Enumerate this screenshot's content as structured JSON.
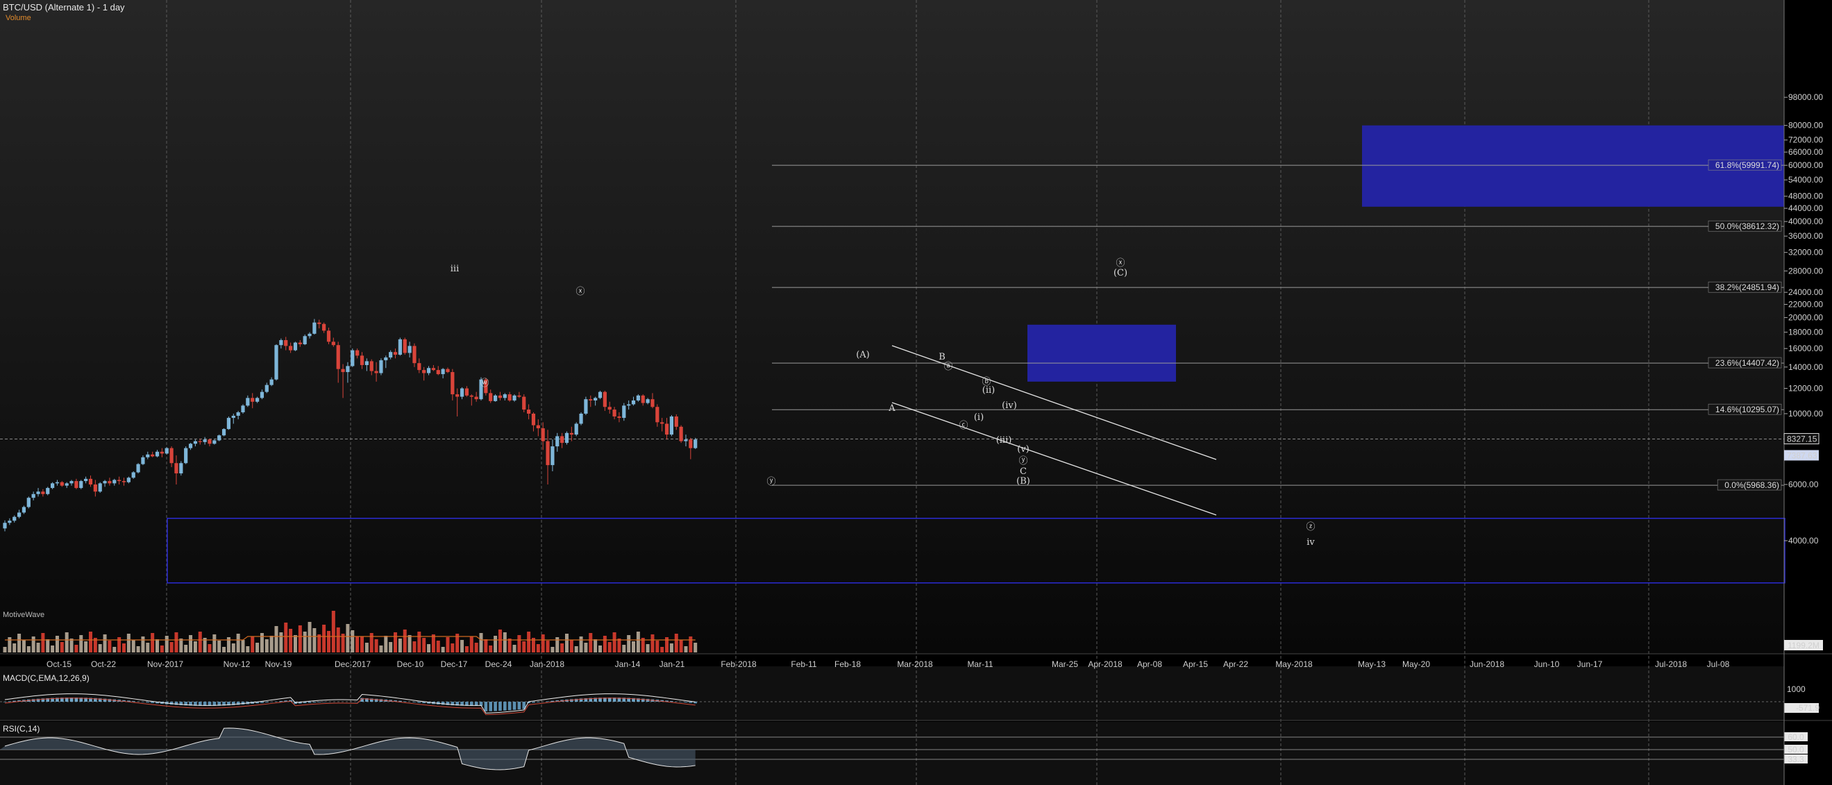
{
  "title": "BTC/USD (Alternate 1) - 1 day",
  "subtitle": "Volume",
  "macd_label": "MACD(C,EMA,12,26,9)",
  "rsi_label": "RSI(C,14)",
  "vol_label": "MotiveWave",
  "colors": {
    "up": "#7eb6d9",
    "down": "#d9443a",
    "box": "#2323a0",
    "boxline": "#2b2bd4",
    "grid": "#6e6e6e"
  },
  "chart_data": {
    "type": "candlestick",
    "y_scale": "log",
    "ylim": [
      2800,
      100000
    ],
    "y_ticks": [
      "98000.00",
      "80000.00",
      "72000.00",
      "66000.00",
      "60000.00",
      "54000.00",
      "48000.00",
      "44000.00",
      "40000.00",
      "36000.00",
      "32000.00",
      "28000.00",
      "24000.00",
      "22000.00",
      "20000.00",
      "18000.00",
      "16000.00",
      "14000.00",
      "12000.00",
      "10000.00",
      "6000.00",
      "4000.00"
    ],
    "x_labels": [
      "Oct-15",
      "Oct-22",
      "Nov-2017",
      "Nov-12",
      "Nov-19",
      "Dec-2017",
      "Dec-10",
      "Dec-17",
      "Dec-24",
      "Jan-2018",
      "Jan-14",
      "Jan-21",
      "Feb-2018",
      "Feb-11",
      "Feb-18",
      "Mar-2018",
      "Mar-11",
      "Mar-25",
      "Apr-2018",
      "Apr-08",
      "Apr-15",
      "Apr-22",
      "May-2018",
      "May-13",
      "May-20",
      "Jun-2018",
      "Jun-10",
      "Jun-17",
      "Jul-2018",
      "Jul-08"
    ],
    "fib_levels": [
      {
        "label": "61.8%(59991.74)",
        "value": 59991.74,
        "highlight": true
      },
      {
        "label": "50.0%(38612.32)",
        "value": 38612.32
      },
      {
        "label": "38.2%(24851.94)",
        "value": 24851.94
      },
      {
        "label": "23.6%(14407.42)",
        "value": 14407.42
      },
      {
        "label": "14.6%(10295.07)",
        "value": 10295.07
      },
      {
        "label": "0.0%(5968.36)",
        "value": 5968.36
      }
    ],
    "price_tags": [
      {
        "label": "8327.15",
        "value": 8327.15,
        "style": "outline"
      },
      {
        "label": "7387.63",
        "value": 7387.63,
        "style": "filled"
      }
    ],
    "volume_tag": "1199.2M",
    "macd_ticks": [
      "1000",
      "-571.9"
    ],
    "rsi_ticks": [
      "60.0",
      "50.0",
      "33.3"
    ],
    "wave_labels": [
      "iii",
      "ⓧ",
      "ⓦ",
      "ⓨ",
      "(A)",
      "B",
      "A",
      "ⓐ",
      "ⓑ",
      "ⓒ",
      "(ii)",
      "(i)",
      "(iii)",
      "(iv)",
      "(v)",
      "ⓨ",
      "C",
      "(B)",
      "ⓧ",
      "(C)",
      "ⓩ",
      "iv"
    ],
    "candles": [
      [
        4370,
        4630,
        4280,
        4550
      ],
      [
        4550,
        4700,
        4480,
        4620
      ],
      [
        4620,
        4800,
        4560,
        4750
      ],
      [
        4750,
        5000,
        4700,
        4900
      ],
      [
        4900,
        5150,
        4850,
        5100
      ],
      [
        5100,
        5500,
        5050,
        5450
      ],
      [
        5450,
        5700,
        5350,
        5600
      ],
      [
        5600,
        5850,
        5500,
        5700
      ],
      [
        5700,
        5800,
        5500,
        5600
      ],
      [
        5600,
        5900,
        5550,
        5850
      ],
      [
        5850,
        6100,
        5800,
        6050
      ],
      [
        6050,
        6200,
        5950,
        6100
      ],
      [
        6100,
        6150,
        5900,
        5950
      ],
      [
        5950,
        6100,
        5850,
        6050
      ],
      [
        6050,
        6200,
        5950,
        6150
      ],
      [
        6150,
        6250,
        5800,
        5850
      ],
      [
        5850,
        6200,
        5800,
        6150
      ],
      [
        6150,
        6350,
        6050,
        6250
      ],
      [
        6250,
        6400,
        5900,
        6000
      ],
      [
        6000,
        6200,
        5500,
        5700
      ],
      [
        5700,
        6100,
        5650,
        6050
      ],
      [
        6050,
        6200,
        5900,
        6150
      ],
      [
        6150,
        6300,
        5950,
        6050
      ],
      [
        6050,
        6250,
        5950,
        6200
      ],
      [
        6200,
        6350,
        6000,
        6150
      ],
      [
        6150,
        6300,
        5950,
        6100
      ],
      [
        6100,
        6350,
        6050,
        6300
      ],
      [
        6300,
        6600,
        6250,
        6550
      ],
      [
        6550,
        7000,
        6500,
        6950
      ],
      [
        6950,
        7400,
        6900,
        7300
      ],
      [
        7300,
        7600,
        7200,
        7450
      ],
      [
        7450,
        7600,
        7300,
        7350
      ],
      [
        7350,
        7700,
        7300,
        7600
      ],
      [
        7600,
        7800,
        7300,
        7500
      ],
      [
        7500,
        7850,
        7450,
        7800
      ],
      [
        7800,
        7900,
        6800,
        7000
      ],
      [
        7000,
        7400,
        6000,
        6500
      ],
      [
        6500,
        7100,
        6400,
        7000
      ],
      [
        7000,
        7900,
        6950,
        7800
      ],
      [
        7800,
        8100,
        7700,
        8050
      ],
      [
        8050,
        8300,
        7900,
        8200
      ],
      [
        8200,
        8350,
        8000,
        8150
      ],
      [
        8150,
        8450,
        8000,
        8300
      ],
      [
        8300,
        8350,
        7900,
        8050
      ],
      [
        8050,
        8300,
        8000,
        8250
      ],
      [
        8250,
        8600,
        8200,
        8550
      ],
      [
        8550,
        9000,
        8500,
        8950
      ],
      [
        8950,
        9800,
        8900,
        9700
      ],
      [
        9700,
        10000,
        9300,
        9850
      ],
      [
        9850,
        10200,
        9600,
        10100
      ],
      [
        10100,
        10700,
        10000,
        10600
      ],
      [
        10600,
        11400,
        10500,
        11200
      ],
      [
        11200,
        11600,
        10400,
        10900
      ],
      [
        10900,
        11300,
        10800,
        11200
      ],
      [
        11200,
        11900,
        11100,
        11700
      ],
      [
        11700,
        12500,
        11600,
        12300
      ],
      [
        12300,
        13000,
        12200,
        12800
      ],
      [
        12800,
        16500,
        12700,
        16400
      ],
      [
        16400,
        17200,
        16000,
        17000
      ],
      [
        17000,
        17400,
        15800,
        16300
      ],
      [
        16300,
        16700,
        15500,
        15800
      ],
      [
        15800,
        16800,
        15700,
        16700
      ],
      [
        16700,
        17000,
        16200,
        16500
      ],
      [
        16500,
        17700,
        16400,
        17500
      ],
      [
        17500,
        18000,
        17200,
        17800
      ],
      [
        17800,
        19800,
        17700,
        19300
      ],
      [
        19300,
        19700,
        18500,
        19100
      ],
      [
        19100,
        19300,
        17900,
        18200
      ],
      [
        18200,
        18600,
        16500,
        16800
      ],
      [
        16800,
        17300,
        16200,
        16400
      ],
      [
        16400,
        16800,
        12500,
        13800
      ],
      [
        13800,
        14300,
        11200,
        13500
      ],
      [
        13500,
        14500,
        12500,
        14100
      ],
      [
        14100,
        16000,
        14000,
        15800
      ],
      [
        15800,
        16000,
        14900,
        15200
      ],
      [
        15200,
        15600,
        13800,
        14200
      ],
      [
        14200,
        14900,
        13600,
        14600
      ],
      [
        14600,
        14800,
        13200,
        13600
      ],
      [
        13600,
        14500,
        12600,
        13400
      ],
      [
        13400,
        14900,
        13200,
        14700
      ],
      [
        14700,
        15200,
        13900,
        15000
      ],
      [
        15000,
        15800,
        14800,
        15600
      ],
      [
        15600,
        16000,
        14900,
        15300
      ],
      [
        15300,
        17300,
        15200,
        17100
      ],
      [
        17100,
        17300,
        15300,
        15500
      ],
      [
        15500,
        16800,
        15000,
        16300
      ],
      [
        16300,
        16600,
        14000,
        14400
      ],
      [
        14400,
        14900,
        13400,
        13700
      ],
      [
        13700,
        14000,
        12700,
        13400
      ],
      [
        13400,
        14100,
        13200,
        13900
      ],
      [
        13900,
        14200,
        13600,
        13700
      ],
      [
        13700,
        14100,
        13200,
        13300
      ],
      [
        13300,
        13900,
        12900,
        13800
      ],
      [
        13800,
        13950,
        13400,
        13500
      ],
      [
        13500,
        13800,
        11000,
        11500
      ],
      [
        11500,
        12000,
        9800,
        11300
      ],
      [
        11300,
        12100,
        11100,
        12000
      ],
      [
        12000,
        12200,
        11300,
        11400
      ],
      [
        11400,
        11500,
        10600,
        11300
      ],
      [
        11300,
        11700,
        10900,
        11100
      ],
      [
        11100,
        13000,
        11000,
        12800
      ],
      [
        12800,
        12950,
        11400,
        11600
      ],
      [
        11600,
        11900,
        10800,
        10950
      ],
      [
        10950,
        11500,
        10900,
        11400
      ],
      [
        11400,
        11700,
        11000,
        11200
      ],
      [
        11200,
        11600,
        11000,
        11500
      ],
      [
        11500,
        11700,
        10900,
        11000
      ],
      [
        11000,
        11500,
        10900,
        11400
      ],
      [
        11400,
        11700,
        11200,
        11300
      ],
      [
        11300,
        11500,
        10100,
        10300
      ],
      [
        10300,
        10700,
        9600,
        10000
      ],
      [
        10000,
        10100,
        8800,
        9200
      ],
      [
        9200,
        9600,
        8500,
        9000
      ],
      [
        9000,
        9400,
        7700,
        8200
      ],
      [
        8200,
        8900,
        6000,
        6900
      ],
      [
        6900,
        8300,
        6600,
        7900
      ],
      [
        7900,
        8700,
        7600,
        8500
      ],
      [
        8500,
        8700,
        7800,
        8100
      ],
      [
        8100,
        8800,
        8000,
        8700
      ],
      [
        8700,
        9100,
        8200,
        8600
      ],
      [
        8600,
        9400,
        8500,
        9300
      ],
      [
        9300,
        10100,
        9200,
        10000
      ],
      [
        10000,
        11300,
        9900,
        11100
      ],
      [
        11100,
        11400,
        10500,
        11000
      ],
      [
        11000,
        11300,
        10600,
        11200
      ],
      [
        11200,
        11800,
        11100,
        11700
      ],
      [
        11700,
        11800,
        10200,
        10500
      ],
      [
        10500,
        10900,
        10000,
        10300
      ],
      [
        10300,
        10500,
        9600,
        9800
      ],
      [
        9800,
        10100,
        9400,
        9700
      ],
      [
        9700,
        10800,
        9500,
        10600
      ],
      [
        10600,
        11000,
        10300,
        10700
      ],
      [
        10700,
        11300,
        10600,
        11000
      ],
      [
        11000,
        11500,
        10900,
        11400
      ],
      [
        11400,
        11500,
        10600,
        10800
      ],
      [
        10800,
        11200,
        10700,
        11100
      ],
      [
        11100,
        11600,
        10400,
        10500
      ],
      [
        10500,
        10700,
        9100,
        9400
      ],
      [
        9400,
        9700,
        8800,
        9300
      ],
      [
        9300,
        9700,
        8300,
        8600
      ],
      [
        8600,
        9900,
        8500,
        9800
      ],
      [
        9800,
        9950,
        8900,
        9100
      ],
      [
        9100,
        9200,
        8100,
        8200
      ],
      [
        8200,
        8600,
        7900,
        8300
      ],
      [
        8300,
        8400,
        7200,
        7800
      ],
      [
        7800,
        8400,
        7750,
        8300
      ]
    ]
  }
}
